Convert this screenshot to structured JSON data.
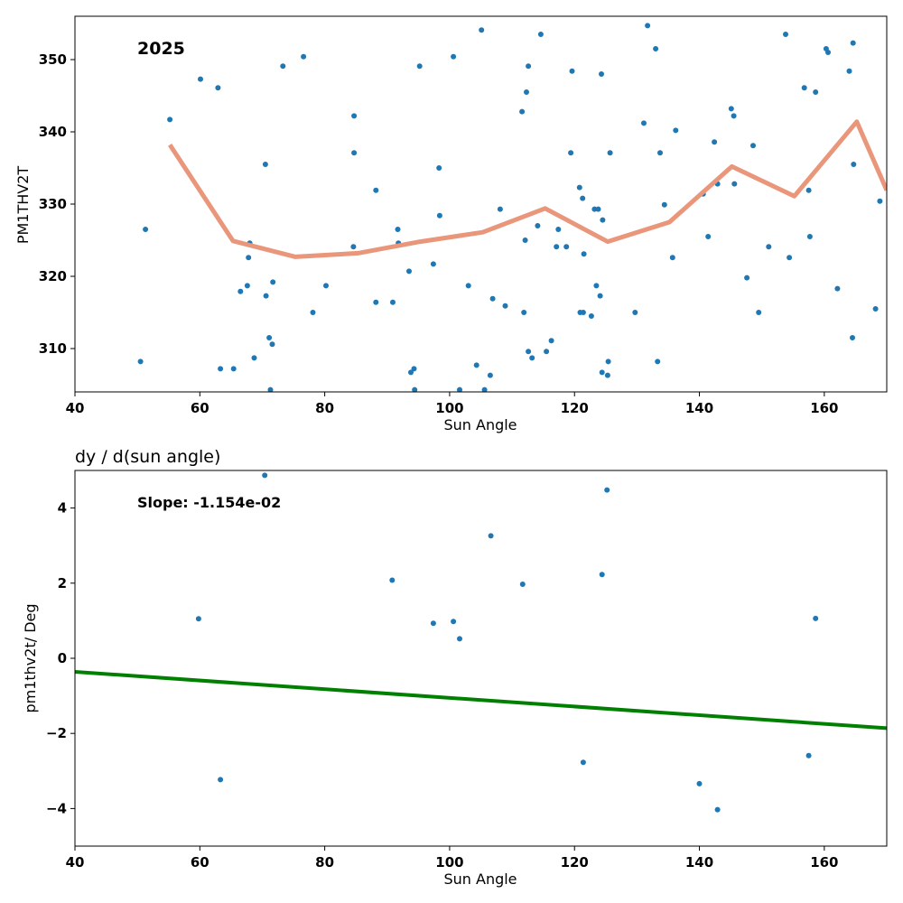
{
  "colors": {
    "points": "#1f77b4",
    "trend": "#e9967a",
    "fit": "#008000",
    "axes": "#000000"
  },
  "chart_data": [
    {
      "type": "scatter",
      "title": "",
      "annotation": "2025",
      "xlabel": "Sun Angle",
      "ylabel": "PM1THV2T",
      "xlim": [
        40,
        170
      ],
      "ylim": [
        304,
        356
      ],
      "xticks": [
        40,
        60,
        80,
        100,
        120,
        140,
        160
      ],
      "yticks": [
        310,
        320,
        330,
        340,
        350
      ],
      "grid": false,
      "series": [
        {
          "kind": "points",
          "points": [
            [
              50.5,
              308.2
            ],
            [
              51.3,
              326.5
            ],
            [
              55.2,
              341.7
            ],
            [
              60.1,
              347.3
            ],
            [
              62.9,
              346.1
            ],
            [
              63.3,
              307.2
            ],
            [
              65.4,
              307.2
            ],
            [
              66.5,
              317.9
            ],
            [
              67.6,
              318.7
            ],
            [
              67.8,
              322.6
            ],
            [
              68.0,
              324.6
            ],
            [
              68.7,
              308.7
            ],
            [
              70.5,
              335.5
            ],
            [
              70.6,
              317.3
            ],
            [
              71.1,
              311.5
            ],
            [
              71.3,
              304.3
            ],
            [
              71.6,
              310.6
            ],
            [
              71.7,
              319.2
            ],
            [
              73.3,
              349.1
            ],
            [
              76.6,
              350.4
            ],
            [
              78.1,
              315.0
            ],
            [
              80.2,
              318.7
            ],
            [
              84.6,
              324.1
            ],
            [
              84.7,
              342.2
            ],
            [
              84.7,
              337.1
            ],
            [
              88.2,
              331.9
            ],
            [
              88.2,
              316.4
            ],
            [
              90.9,
              316.4
            ],
            [
              91.7,
              326.5
            ],
            [
              91.8,
              324.6
            ],
            [
              93.5,
              320.7
            ],
            [
              93.8,
              306.7
            ],
            [
              94.3,
              307.2
            ],
            [
              94.4,
              304.3
            ],
            [
              95.2,
              349.1
            ],
            [
              97.4,
              321.7
            ],
            [
              98.3,
              335.0
            ],
            [
              98.4,
              328.4
            ],
            [
              100.6,
              350.4
            ],
            [
              101.6,
              304.3
            ],
            [
              103.0,
              318.7
            ],
            [
              104.3,
              307.7
            ],
            [
              105.1,
              354.1
            ],
            [
              105.6,
              304.3
            ],
            [
              106.5,
              306.3
            ],
            [
              106.9,
              316.9
            ],
            [
              108.1,
              329.3
            ],
            [
              108.9,
              315.9
            ],
            [
              111.6,
              342.8
            ],
            [
              111.9,
              315.0
            ],
            [
              112.1,
              325.0
            ],
            [
              112.3,
              345.5
            ],
            [
              112.6,
              349.1
            ],
            [
              112.6,
              309.6
            ],
            [
              113.2,
              308.7
            ],
            [
              114.1,
              327.0
            ],
            [
              114.6,
              353.5
            ],
            [
              115.5,
              309.6
            ],
            [
              116.3,
              311.1
            ],
            [
              117.1,
              324.1
            ],
            [
              117.4,
              326.5
            ],
            [
              118.7,
              324.1
            ],
            [
              119.4,
              337.1
            ],
            [
              119.6,
              348.4
            ],
            [
              120.8,
              332.3
            ],
            [
              120.9,
              315.0
            ],
            [
              121.3,
              330.8
            ],
            [
              121.4,
              315.0
            ],
            [
              121.5,
              323.1
            ],
            [
              122.7,
              314.5
            ],
            [
              123.2,
              329.3
            ],
            [
              123.5,
              318.7
            ],
            [
              123.8,
              329.3
            ],
            [
              124.1,
              317.3
            ],
            [
              124.3,
              348.0
            ],
            [
              124.4,
              306.7
            ],
            [
              124.5,
              327.8
            ],
            [
              125.3,
              306.3
            ],
            [
              125.4,
              308.2
            ],
            [
              125.7,
              337.1
            ],
            [
              129.7,
              315.0
            ],
            [
              131.1,
              341.2
            ],
            [
              131.7,
              354.7
            ],
            [
              133.0,
              351.5
            ],
            [
              133.3,
              308.2
            ],
            [
              133.7,
              337.1
            ],
            [
              134.4,
              329.9
            ],
            [
              135.7,
              322.6
            ],
            [
              136.2,
              340.2
            ],
            [
              140.6,
              331.4
            ],
            [
              141.4,
              325.5
            ],
            [
              142.4,
              338.6
            ],
            [
              142.9,
              332.8
            ],
            [
              145.1,
              343.2
            ],
            [
              145.5,
              342.2
            ],
            [
              145.6,
              332.8
            ],
            [
              147.6,
              319.8
            ],
            [
              148.6,
              338.1
            ],
            [
              149.5,
              315.0
            ],
            [
              151.1,
              324.1
            ],
            [
              153.8,
              353.5
            ],
            [
              154.4,
              322.6
            ],
            [
              156.8,
              346.1
            ],
            [
              157.5,
              331.9
            ],
            [
              157.7,
              325.5
            ],
            [
              158.6,
              345.5
            ],
            [
              160.3,
              351.5
            ],
            [
              160.6,
              351.0
            ],
            [
              162.1,
              318.3
            ],
            [
              164.0,
              348.4
            ],
            [
              164.5,
              311.5
            ],
            [
              164.6,
              352.3
            ],
            [
              164.7,
              335.5
            ],
            [
              168.2,
              315.5
            ],
            [
              168.9,
              330.4
            ]
          ]
        },
        {
          "kind": "line",
          "points": [
            [
              55.2,
              338.2
            ],
            [
              65.3,
              324.9
            ],
            [
              75.3,
              322.7
            ],
            [
              85.3,
              323.2
            ],
            [
              95.3,
              324.8
            ],
            [
              105.3,
              326.1
            ],
            [
              115.3,
              329.4
            ],
            [
              125.3,
              324.8
            ],
            [
              135.2,
              327.5
            ],
            [
              145.2,
              335.2
            ],
            [
              155.2,
              331.1
            ],
            [
              165.2,
              341.4
            ],
            [
              170.0,
              331.9
            ]
          ]
        }
      ]
    },
    {
      "type": "scatter",
      "title": "dy / d(sun angle)",
      "annotation": "Slope: -1.154e-02",
      "xlabel": "Sun Angle",
      "ylabel": "pm1thv2t/ Deg",
      "xlim": [
        40,
        170
      ],
      "ylim": [
        -5,
        5
      ],
      "xticks": [
        40,
        60,
        80,
        100,
        120,
        140,
        160
      ],
      "yticks": [
        -4,
        -2,
        0,
        2,
        4
      ],
      "ytick_labels": [
        "−4",
        "−2",
        "0",
        "2",
        "4"
      ],
      "grid": false,
      "series": [
        {
          "kind": "points",
          "points": [
            [
              59.8,
              1.05
            ],
            [
              63.3,
              -3.23
            ],
            [
              70.4,
              4.87
            ],
            [
              90.8,
              2.08
            ],
            [
              97.4,
              0.93
            ],
            [
              100.6,
              0.98
            ],
            [
              101.6,
              0.52
            ],
            [
              106.6,
              3.26
            ],
            [
              111.7,
              1.97
            ],
            [
              121.4,
              -2.77
            ],
            [
              124.4,
              2.23
            ],
            [
              125.2,
              4.48
            ],
            [
              140.0,
              -3.34
            ],
            [
              142.9,
              -4.03
            ],
            [
              157.5,
              -2.59
            ],
            [
              158.6,
              1.06
            ]
          ]
        },
        {
          "kind": "line",
          "points": [
            [
              40,
              -0.36
            ],
            [
              170,
              -1.86
            ]
          ]
        }
      ]
    }
  ]
}
